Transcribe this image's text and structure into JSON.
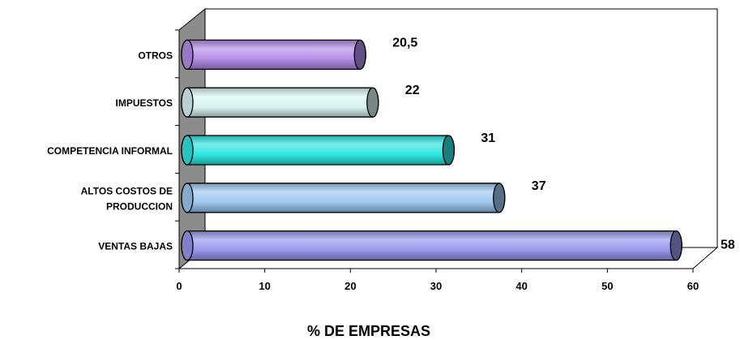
{
  "chart_data": {
    "type": "bar",
    "orientation": "horizontal",
    "categories": [
      "OTROS",
      "IMPUESTOS",
      "COMPETENCIA INFORMAL",
      "ALTOS COSTOS DE PRODUCCION",
      "VENTAS BAJAS"
    ],
    "category_lines": [
      [
        "OTROS"
      ],
      [
        "IMPUESTOS"
      ],
      [
        "COMPETENCIA INFORMAL"
      ],
      [
        "ALTOS COSTOS DE",
        "PRODUCCION"
      ],
      [
        "VENTAS BAJAS"
      ]
    ],
    "values": [
      20.5,
      22,
      31,
      37,
      58
    ],
    "value_labels": [
      "20,5",
      "22",
      "31",
      "37",
      "58"
    ],
    "colors": [
      "#b38ee8",
      "#d9f5f3",
      "#2fe6e0",
      "#9ec8f0",
      "#9898ee"
    ],
    "xlabel": "% DE EMPRESAS",
    "xlim": [
      0,
      60
    ],
    "xticks": [
      0,
      10,
      20,
      30,
      40,
      50,
      60
    ],
    "grid": false,
    "legend": "none",
    "style": "3d-cylinder"
  }
}
